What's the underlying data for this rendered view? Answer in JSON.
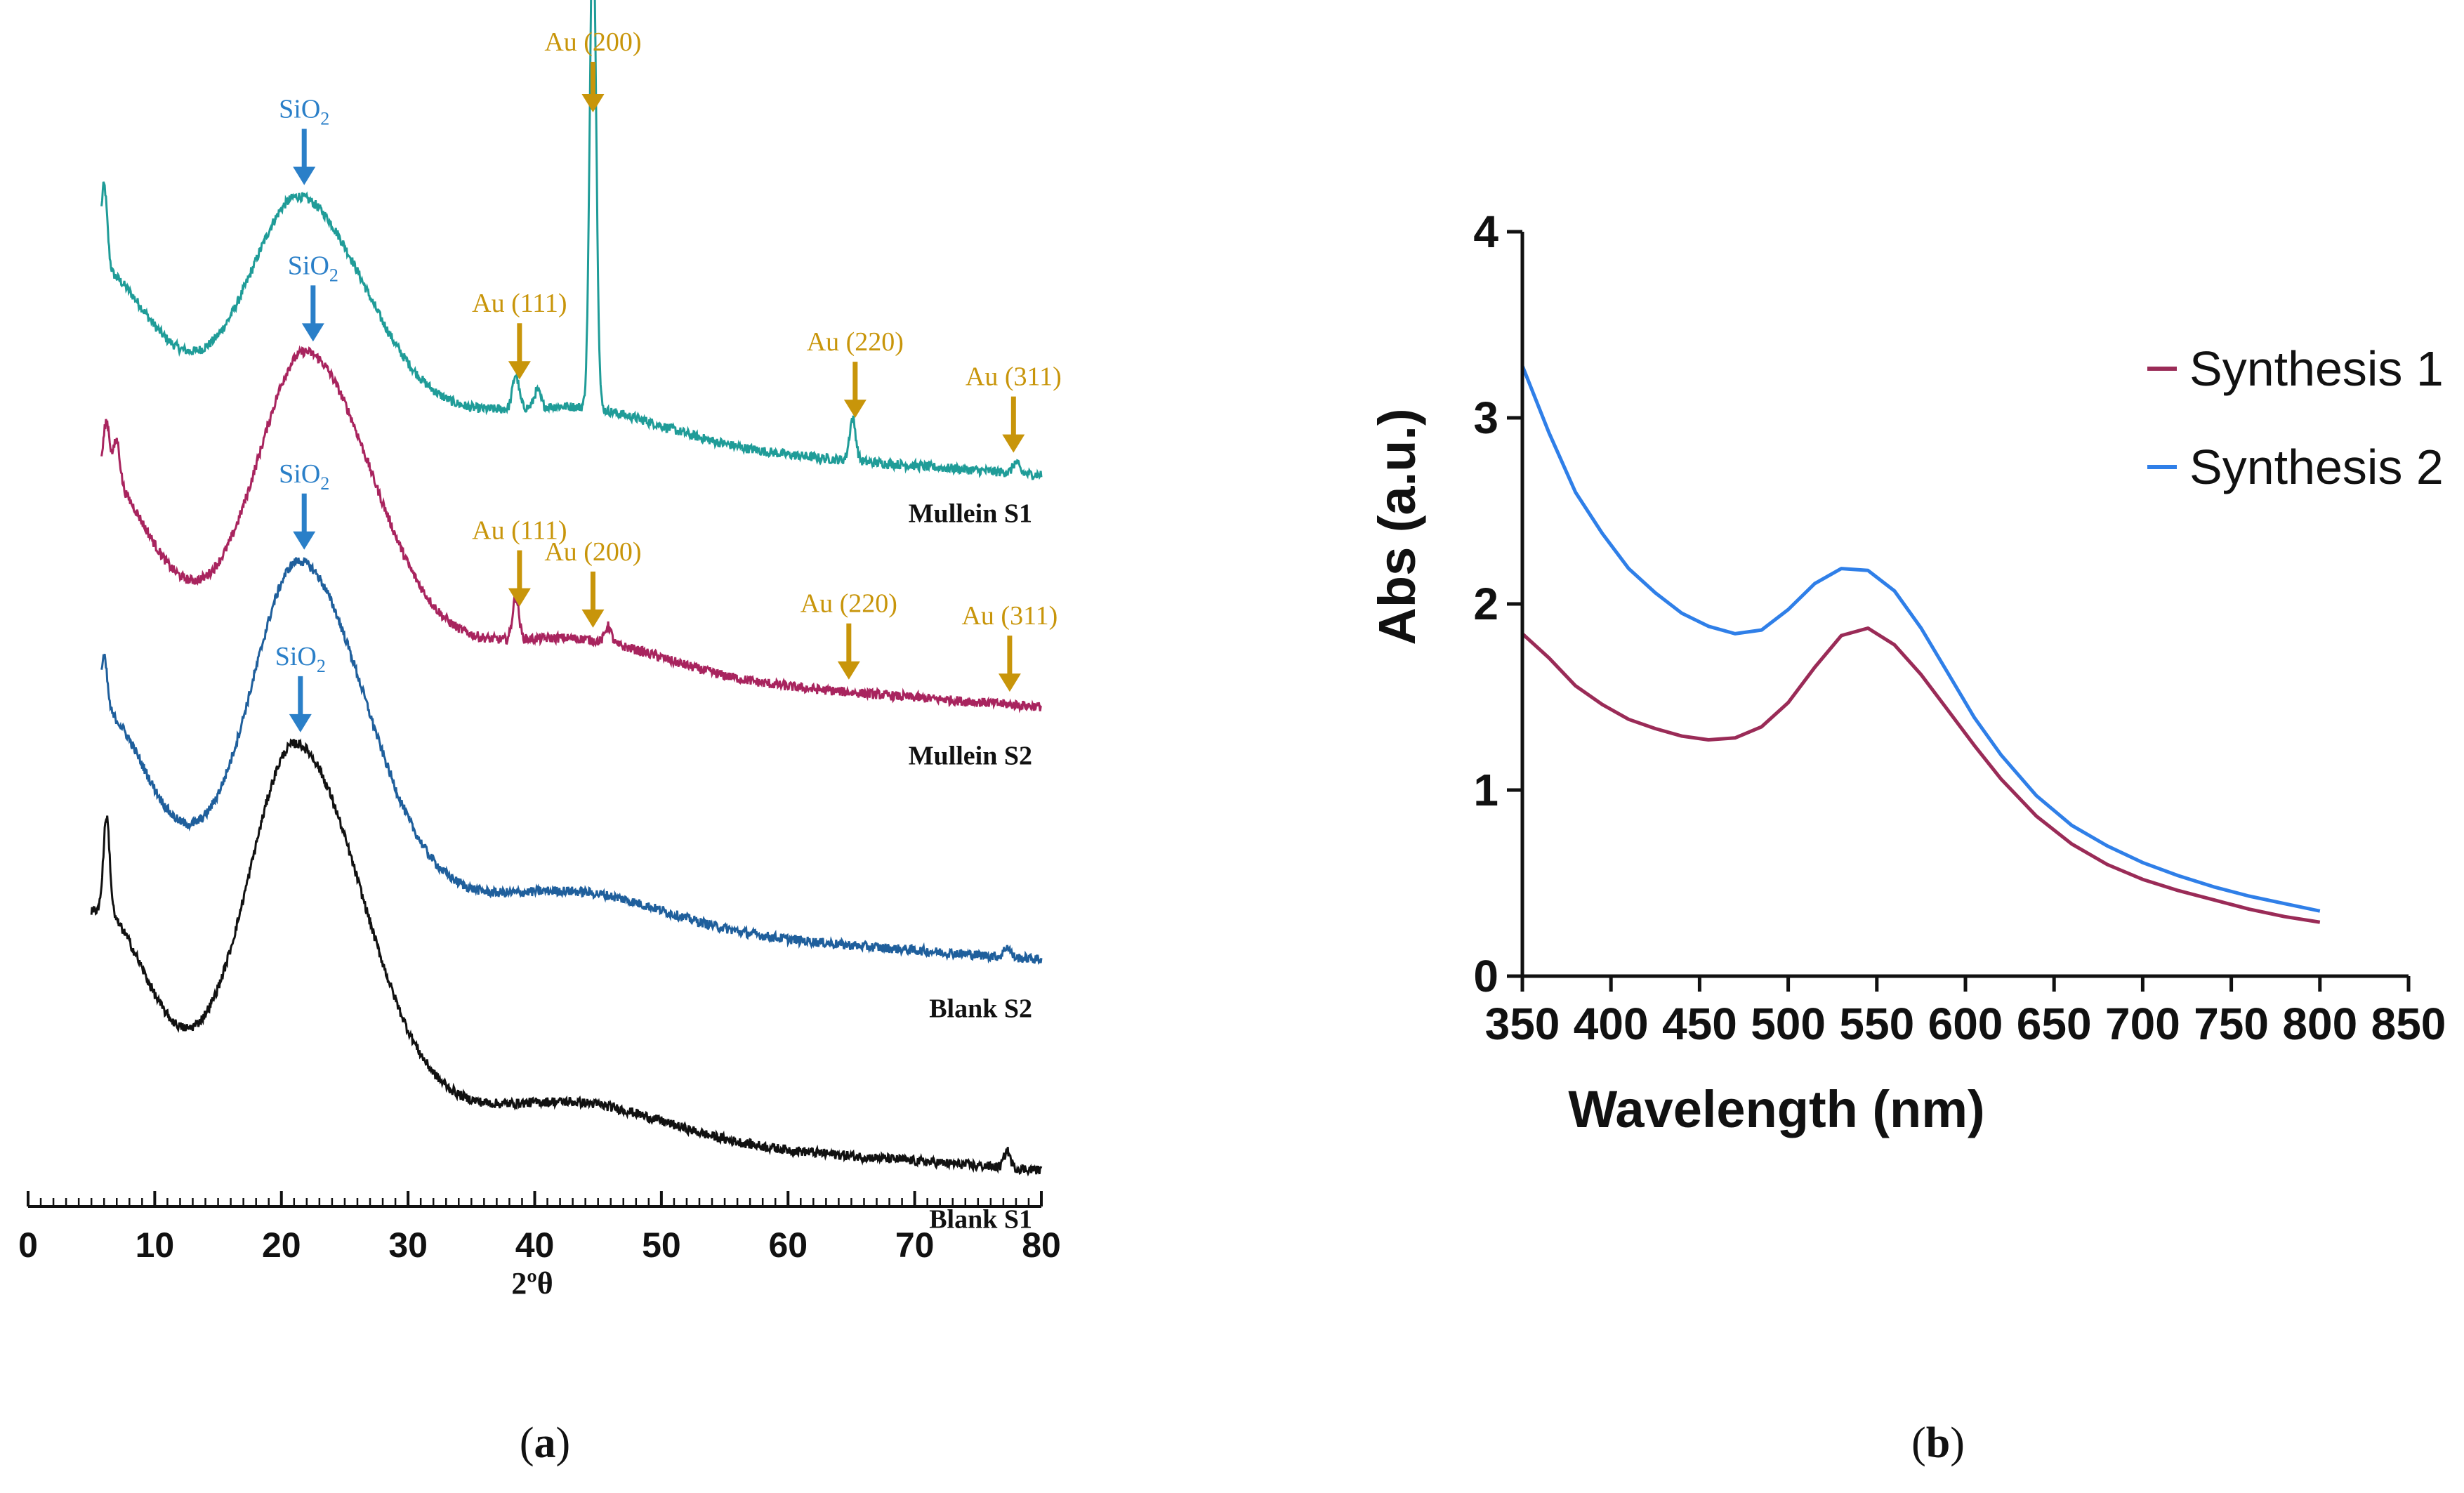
{
  "colors": {
    "mullein_s1": "#1f9c98",
    "mullein_s2": "#a8245e",
    "blank_s2": "#1f5f9c",
    "blank_s1": "#111111",
    "gold": "#c8950a",
    "sio2_blue": "#2a7fc8",
    "synthesis_1": "#9a2b57",
    "synthesis_2": "#2f7fe8"
  },
  "panel_a": {
    "caption_open": "(",
    "caption_letter": "a",
    "caption_close": ")",
    "chart_data": {
      "type": "line",
      "title": "",
      "xlabel": "2ºθ",
      "ylabel": "",
      "xlim": [
        0,
        80
      ],
      "xticks": [
        0,
        10,
        20,
        30,
        40,
        50,
        60,
        70,
        80
      ],
      "grid": false,
      "series": [
        {
          "name": "Mullein S1",
          "color": "#1f9c98",
          "offset": 3.3,
          "start": 5.8,
          "broad_height": 0.95,
          "broad_center": 21.5,
          "peaks": [
            [
              6.0,
              0.4
            ],
            [
              38.5,
              0.16
            ],
            [
              40.2,
              0.08
            ],
            [
              44.6,
              2.35
            ],
            [
              65.1,
              0.2
            ],
            [
              78.0,
              0.05
            ]
          ],
          "annotations": [
            {
              "label": "SiO₂",
              "x": 21.8,
              "color": "#2a7fc8"
            },
            {
              "label": "Au (111)",
              "x": 38.8,
              "color": "#c8950a"
            },
            {
              "label": "Au (200)",
              "x": 44.6,
              "color": "#c8950a"
            },
            {
              "label": "Au (220)",
              "x": 65.3,
              "color": "#c8950a"
            },
            {
              "label": "Au (311)",
              "x": 77.8,
              "color": "#c8950a"
            }
          ]
        },
        {
          "name": "Mullein S2",
          "color": "#a8245e",
          "offset": 2.2,
          "start": 5.8,
          "broad_height": 1.32,
          "broad_center": 22.0,
          "peaks": [
            [
              6.2,
              0.25
            ],
            [
              7.0,
              0.2
            ],
            [
              38.5,
              0.2
            ],
            [
              45.8,
              0.08
            ]
          ],
          "annotations": [
            {
              "label": "SiO₂",
              "x": 22.5,
              "color": "#2a7fc8"
            },
            {
              "label": "Au (111)",
              "x": 38.8,
              "color": "#c8950a"
            },
            {
              "label": "Au (200)",
              "x": 44.6,
              "color": "#c8950a"
            },
            {
              "label": "Au (220)",
              "x": 64.8,
              "color": "#c8950a"
            },
            {
              "label": "Au (311)",
              "x": 77.5,
              "color": "#c8950a"
            }
          ]
        },
        {
          "name": "Blank S2",
          "color": "#1f5f9c",
          "offset": 1.0,
          "start": 5.8,
          "broad_height": 1.52,
          "broad_center": 21.5,
          "peaks": [
            [
              6.0,
              0.25
            ],
            [
              77.3,
              0.05
            ]
          ],
          "annotations": [
            {
              "label": "SiO₂",
              "x": 21.8,
              "color": "#2a7fc8"
            }
          ]
        },
        {
          "name": "Blank S1",
          "color": "#111111",
          "offset": 0.0,
          "start": 5.0,
          "broad_height": 1.65,
          "broad_center": 21.2,
          "peaks": [
            [
              6.2,
              0.45
            ],
            [
              77.3,
              0.08
            ]
          ],
          "annotations": [
            {
              "label": "SiO₂",
              "x": 21.5,
              "color": "#2a7fc8"
            }
          ]
        }
      ]
    }
  },
  "panel_b": {
    "caption_open": "(",
    "caption_letter": "b",
    "caption_close": ")",
    "chart_data": {
      "type": "line",
      "title": "",
      "xlabel": "Wavelength (nm)",
      "ylabel": "Abs (a.u.)",
      "xlim": [
        350,
        850
      ],
      "ylim": [
        0,
        4
      ],
      "xticks": [
        350,
        400,
        450,
        500,
        550,
        600,
        650,
        700,
        750,
        800,
        850
      ],
      "yticks": [
        0,
        1,
        2,
        3,
        4
      ],
      "grid": false,
      "legend_position": "top-right",
      "series": [
        {
          "name": "Synthesis 1",
          "color": "#9a2b57",
          "x": [
            350,
            365,
            380,
            395,
            410,
            425,
            440,
            455,
            470,
            485,
            500,
            515,
            530,
            545,
            560,
            575,
            590,
            605,
            620,
            640,
            660,
            680,
            700,
            720,
            740,
            760,
            780,
            800
          ],
          "y": [
            1.84,
            1.71,
            1.56,
            1.46,
            1.38,
            1.33,
            1.29,
            1.27,
            1.28,
            1.34,
            1.47,
            1.66,
            1.83,
            1.87,
            1.78,
            1.62,
            1.43,
            1.24,
            1.06,
            0.86,
            0.71,
            0.6,
            0.52,
            0.46,
            0.41,
            0.36,
            0.32,
            0.29
          ]
        },
        {
          "name": "Synthesis 2",
          "color": "#2f7fe8",
          "x": [
            350,
            365,
            380,
            395,
            410,
            425,
            440,
            455,
            470,
            485,
            500,
            515,
            530,
            545,
            560,
            575,
            590,
            605,
            620,
            640,
            660,
            680,
            700,
            720,
            740,
            760,
            780,
            800
          ],
          "y": [
            3.28,
            2.92,
            2.6,
            2.38,
            2.19,
            2.06,
            1.95,
            1.88,
            1.84,
            1.86,
            1.97,
            2.11,
            2.19,
            2.18,
            2.07,
            1.87,
            1.63,
            1.39,
            1.19,
            0.97,
            0.81,
            0.7,
            0.61,
            0.54,
            0.48,
            0.43,
            0.39,
            0.35
          ]
        }
      ]
    }
  }
}
